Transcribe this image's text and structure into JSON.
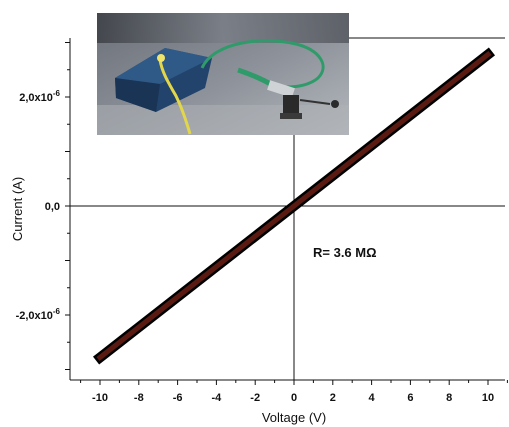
{
  "chart_data": {
    "type": "line",
    "xlabel": "Voltage (V)",
    "ylabel": "Current (A)",
    "xlim": [
      -11.5,
      11.5
    ],
    "ylim": [
      -3.4e-06,
      3.4e-06
    ],
    "x_ticks": [
      -10,
      -8,
      -6,
      -4,
      -2,
      0,
      2,
      4,
      6,
      8,
      10
    ],
    "x_tick_labels": [
      "-10",
      "-8",
      "-6",
      "-4",
      "-2",
      "0",
      "2",
      "4",
      "6",
      "8",
      "10"
    ],
    "y_ticks": [
      -2e-06,
      0,
      2e-06
    ],
    "y_tick_labels": [
      {
        "base": "-2,0x10",
        "exp": "-6"
      },
      {
        "base": "0,0",
        "exp": ""
      },
      {
        "base": "2,0x10",
        "exp": "-6"
      }
    ],
    "grid": false,
    "series": [
      {
        "x": [
          -10,
          10
        ],
        "y": [
          -2.78e-06,
          2.78e-06
        ],
        "color": "#5a1a12"
      }
    ],
    "annotation": "R= 3.6 MΩ",
    "inset_photo": "electrical-measurement-setup-photo"
  }
}
